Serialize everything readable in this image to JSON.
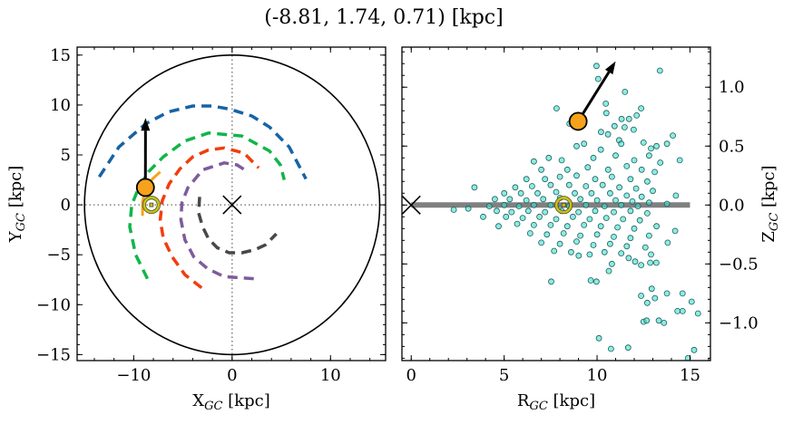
{
  "title": "(-8.81, 1.74, 0.71) [kpc]",
  "chart_data": [
    {
      "type": "line",
      "xlabel": "X",
      "xlabel_sub": "GC",
      "xlabel_unit": " [kpc]",
      "ylabel": "Y",
      "ylabel_sub": "GC",
      "ylabel_unit": " [kpc]",
      "xlim": [
        -15.75,
        15.6
      ],
      "ylim": [
        -15.6,
        15.8
      ],
      "xticks": [
        -10,
        0,
        10
      ],
      "xtick_labels": [
        "−10",
        "0",
        "10"
      ],
      "yticks": [
        15,
        10,
        5,
        0,
        -5,
        -10,
        -15
      ],
      "ytick_labels": [
        "15",
        "10",
        "5",
        "0",
        "−5",
        "−10",
        "−15"
      ],
      "boundary_circle_radius": 15,
      "reference_lines": {
        "x": 0,
        "y": 0,
        "style": "dotted",
        "color": "#808080"
      },
      "galactic_center": [
        0,
        0
      ],
      "sun": [
        -8.2,
        0
      ],
      "object": [
        -8.81,
        1.74
      ],
      "velocity_arrow_tip": [
        -8.8,
        8.7
      ],
      "colors": {
        "object": "#f7a21b",
        "sun": "#c8c400",
        "boundary": "#000000"
      },
      "series": [
        {
          "color": "#1763a6",
          "style": "dashed",
          "points": [
            [
              -13.5,
              2.8
            ],
            [
              -11.5,
              5.8
            ],
            [
              -8.8,
              8.1
            ],
            [
              -6.5,
              9.3
            ],
            [
              -4,
              9.9
            ],
            [
              -2,
              9.9
            ],
            [
              -0.3,
              9.6
            ],
            [
              2,
              8.9
            ],
            [
              3.8,
              7.8
            ],
            [
              5.8,
              5.8
            ],
            [
              7.5,
              2.6
            ]
          ]
        },
        {
          "color": "#10b64a",
          "style": "dashed",
          "points": [
            [
              -8.6,
              -7.4
            ],
            [
              -9.8,
              -5
            ],
            [
              -10.4,
              -2.2
            ],
            [
              -10.2,
              0
            ],
            [
              -9.5,
              1.7
            ],
            [
              -8.5,
              3.3
            ],
            [
              -7,
              4.8
            ],
            [
              -4.8,
              6.4
            ],
            [
              -2.4,
              7.2
            ],
            [
              1,
              6.9
            ],
            [
              3.8,
              5.4
            ],
            [
              4.9,
              4
            ],
            [
              5.3,
              2.5
            ]
          ]
        },
        {
          "color": "#f23d0c",
          "style": "dashed",
          "points": [
            [
              -3.1,
              -8.3
            ],
            [
              -4.8,
              -7
            ],
            [
              -6.1,
              -5.2
            ],
            [
              -7,
              -3.3
            ],
            [
              -7.3,
              -1.5
            ],
            [
              -7.1,
              0.4
            ],
            [
              -6.4,
              2.1
            ],
            [
              -5.3,
              3.6
            ],
            [
              -4,
              4.8
            ],
            [
              -2.4,
              5.5
            ],
            [
              -0.8,
              5.7
            ],
            [
              1.2,
              5.2
            ],
            [
              2.7,
              3.7
            ]
          ]
        },
        {
          "color": "#7f5b9c",
          "style": "dashed",
          "points": [
            [
              2.2,
              -7.4
            ],
            [
              -0.8,
              -7.2
            ],
            [
              -2.5,
              -6.4
            ],
            [
              -3.9,
              -5.2
            ],
            [
              -4.8,
              -3.5
            ],
            [
              -5.2,
              -1.5
            ],
            [
              -5.1,
              0.2
            ],
            [
              -4.5,
              1.7
            ],
            [
              -3,
              3.5
            ],
            [
              -0.8,
              4.2
            ],
            [
              0.5,
              4
            ],
            [
              1.6,
              3.3
            ]
          ]
        },
        {
          "color": "#484848",
          "style": "dashed",
          "points": [
            [
              -3.3,
              0.8
            ],
            [
              -3.4,
              -0.8
            ],
            [
              -3,
              -2.2
            ],
            [
              -2.4,
              -3.4
            ],
            [
              -1.5,
              -4.3
            ],
            [
              -0.3,
              -4.8
            ],
            [
              1,
              -4.8
            ],
            [
              2.3,
              -4.5
            ],
            [
              3.4,
              -4
            ],
            [
              4.5,
              -2.9
            ]
          ]
        },
        {
          "color": "#f7a21b",
          "style": "solid",
          "points": [
            [
              -9.1,
              -1.1
            ],
            [
              -9.1,
              0.3
            ],
            [
              -8.8,
              1.7
            ],
            [
              -8.1,
              2.6
            ],
            [
              -7.3,
              3.3
            ]
          ]
        }
      ]
    },
    {
      "type": "scatter",
      "xlabel": "R",
      "xlabel_sub": "GC",
      "xlabel_unit": " [kpc]",
      "ylabel": "Z",
      "ylabel_sub": "GC",
      "ylabel_unit": " [kpc]",
      "xlim": [
        -0.5,
        16.1
      ],
      "ylim": [
        -1.32,
        1.34
      ],
      "xticks": [
        0,
        5,
        10,
        15
      ],
      "xtick_labels": [
        "0",
        "5",
        "10",
        "15"
      ],
      "yticks": [
        1.0,
        0.5,
        0.0,
        -0.5,
        -1.0
      ],
      "ytick_labels": [
        "1.0",
        "0.5",
        "0.0",
        "−0.5",
        "−1.0"
      ],
      "disk_line": {
        "z": 0,
        "r_range": [
          0,
          15
        ],
        "color": "#808080"
      },
      "galactic_center": [
        0,
        0
      ],
      "sun": [
        8.2,
        0
      ],
      "object": [
        8.98,
        0.71
      ],
      "velocity_arrow_tip": [
        11.0,
        1.22
      ],
      "colors": {
        "points": "#40e0d0",
        "point_edge": "#1f5f5a",
        "object": "#f7a21b",
        "sun": "#c8c400"
      },
      "points": [
        [
          9.97,
          1.18
        ],
        [
          10.06,
          1.07
        ],
        [
          13.38,
          1.14
        ],
        [
          11.5,
          0.96
        ],
        [
          7.82,
          0.82
        ],
        [
          10.47,
          0.86
        ],
        [
          10.5,
          0.78
        ],
        [
          12.37,
          0.82
        ],
        [
          12.13,
          0.76
        ],
        [
          11.32,
          0.73
        ],
        [
          11.72,
          0.73
        ],
        [
          8.52,
          0.69
        ],
        [
          10.94,
          0.67
        ],
        [
          11.48,
          0.66
        ],
        [
          11.97,
          0.64
        ],
        [
          10.21,
          0.62
        ],
        [
          10.59,
          0.6
        ],
        [
          14.08,
          0.59
        ],
        [
          11.19,
          0.55
        ],
        [
          13.76,
          0.52
        ],
        [
          6.6,
          0.37
        ],
        [
          14.45,
          0.38
        ],
        [
          3.4,
          0.15
        ],
        [
          14.24,
          0.08
        ],
        [
          13.76,
          0.01
        ],
        [
          2.29,
          -0.04
        ],
        [
          3.07,
          -0.03
        ],
        [
          3.87,
          -0.1
        ],
        [
          4.7,
          -0.18
        ],
        [
          14.2,
          -0.22
        ],
        [
          13.8,
          -0.32
        ],
        [
          7.69,
          -0.39
        ],
        [
          9.01,
          -0.43
        ],
        [
          12.05,
          -0.48
        ],
        [
          12.37,
          -0.51
        ],
        [
          12.86,
          -0.49
        ],
        [
          13.19,
          -0.49
        ],
        [
          10.63,
          -0.56
        ],
        [
          7.53,
          -0.65
        ],
        [
          9.66,
          -0.64
        ],
        [
          9.97,
          -0.65
        ],
        [
          12.94,
          -0.71
        ],
        [
          12.37,
          -0.77
        ],
        [
          13.11,
          -0.79
        ],
        [
          13.76,
          -0.75
        ],
        [
          14.6,
          -0.75
        ],
        [
          12.7,
          -0.83
        ],
        [
          15.09,
          -0.82
        ],
        [
          14.33,
          -0.9
        ],
        [
          14.6,
          -0.9
        ],
        [
          15.43,
          -0.92
        ],
        [
          12.5,
          -0.99
        ],
        [
          12.67,
          -0.98
        ],
        [
          13.32,
          -0.98
        ],
        [
          13.6,
          -1.0
        ],
        [
          10.1,
          -1.13
        ],
        [
          10.75,
          -1.22
        ],
        [
          11.67,
          -1.21
        ],
        [
          15.22,
          -1.23
        ],
        [
          14.89,
          -1.3
        ],
        [
          8.9,
          0.5
        ],
        [
          9.3,
          0.52
        ],
        [
          10.2,
          0.47
        ],
        [
          11.3,
          0.52
        ],
        [
          12.5,
          0.53
        ],
        [
          12.9,
          0.48
        ],
        [
          13.2,
          0.5
        ],
        [
          7.4,
          0.4
        ],
        [
          8.1,
          0.38
        ],
        [
          9.8,
          0.4
        ],
        [
          11.0,
          0.42
        ],
        [
          12.0,
          0.38
        ],
        [
          12.8,
          0.42
        ],
        [
          13.4,
          0.36
        ],
        [
          7.0,
          0.3
        ],
        [
          8.4,
          0.3
        ],
        [
          9.5,
          0.32
        ],
        [
          10.6,
          0.3
        ],
        [
          11.6,
          0.33
        ],
        [
          12.4,
          0.3
        ],
        [
          13.1,
          0.28
        ],
        [
          6.2,
          0.22
        ],
        [
          7.2,
          0.22
        ],
        [
          8.0,
          0.24
        ],
        [
          8.9,
          0.25
        ],
        [
          9.9,
          0.22
        ],
        [
          10.8,
          0.24
        ],
        [
          11.8,
          0.22
        ],
        [
          12.7,
          0.2
        ],
        [
          5.6,
          0.15
        ],
        [
          6.5,
          0.16
        ],
        [
          7.5,
          0.17
        ],
        [
          8.5,
          0.17
        ],
        [
          9.4,
          0.16
        ],
        [
          10.3,
          0.17
        ],
        [
          11.2,
          0.15
        ],
        [
          12.1,
          0.14
        ],
        [
          13.0,
          0.12
        ],
        [
          5.0,
          0.1
        ],
        [
          5.9,
          0.1
        ],
        [
          6.8,
          0.1
        ],
        [
          7.8,
          0.11
        ],
        [
          8.8,
          0.1
        ],
        [
          9.7,
          0.1
        ],
        [
          10.7,
          0.1
        ],
        [
          11.6,
          0.08
        ],
        [
          12.4,
          0.07
        ],
        [
          4.5,
          0.05
        ],
        [
          5.3,
          0.05
        ],
        [
          6.2,
          0.04
        ],
        [
          7.1,
          0.05
        ],
        [
          8.0,
          0.06
        ],
        [
          9.1,
          0.05
        ],
        [
          10.0,
          0.04
        ],
        [
          11.0,
          0.04
        ],
        [
          11.9,
          0.03
        ],
        [
          12.8,
          0.02
        ],
        [
          4.2,
          -0.01
        ],
        [
          5.0,
          0.0
        ],
        [
          5.8,
          -0.01
        ],
        [
          6.6,
          0.0
        ],
        [
          7.5,
          0.0
        ],
        [
          8.5,
          -0.01
        ],
        [
          9.4,
          0.0
        ],
        [
          10.4,
          -0.01
        ],
        [
          11.3,
          0.0
        ],
        [
          12.2,
          -0.01
        ],
        [
          4.6,
          -0.05
        ],
        [
          5.4,
          -0.06
        ],
        [
          6.3,
          -0.05
        ],
        [
          7.2,
          -0.06
        ],
        [
          8.1,
          -0.05
        ],
        [
          9.0,
          -0.06
        ],
        [
          9.9,
          -0.05
        ],
        [
          10.9,
          -0.06
        ],
        [
          11.8,
          -0.05
        ],
        [
          12.7,
          -0.07
        ],
        [
          5.1,
          -0.1
        ],
        [
          6.0,
          -0.11
        ],
        [
          6.9,
          -0.1
        ],
        [
          7.8,
          -0.12
        ],
        [
          8.7,
          -0.1
        ],
        [
          9.6,
          -0.12
        ],
        [
          10.5,
          -0.11
        ],
        [
          11.4,
          -0.12
        ],
        [
          12.3,
          -0.13
        ],
        [
          5.7,
          -0.16
        ],
        [
          6.6,
          -0.17
        ],
        [
          7.5,
          -0.17
        ],
        [
          8.4,
          -0.18
        ],
        [
          9.3,
          -0.17
        ],
        [
          10.2,
          -0.18
        ],
        [
          11.1,
          -0.19
        ],
        [
          12.0,
          -0.2
        ],
        [
          13.2,
          -0.18
        ],
        [
          6.4,
          -0.24
        ],
        [
          7.3,
          -0.25
        ],
        [
          8.2,
          -0.24
        ],
        [
          9.1,
          -0.26
        ],
        [
          10.0,
          -0.25
        ],
        [
          10.9,
          -0.27
        ],
        [
          11.8,
          -0.28
        ],
        [
          12.8,
          -0.26
        ],
        [
          7.0,
          -0.32
        ],
        [
          8.0,
          -0.33
        ],
        [
          8.9,
          -0.31
        ],
        [
          9.8,
          -0.34
        ],
        [
          10.7,
          -0.33
        ],
        [
          11.6,
          -0.35
        ],
        [
          12.6,
          -0.36
        ],
        [
          8.6,
          -0.4
        ],
        [
          9.6,
          -0.42
        ],
        [
          10.4,
          -0.4
        ],
        [
          11.3,
          -0.41
        ],
        [
          10.8,
          -0.5
        ],
        [
          11.7,
          -0.45
        ],
        [
          12.9,
          -0.42
        ]
      ]
    }
  ]
}
